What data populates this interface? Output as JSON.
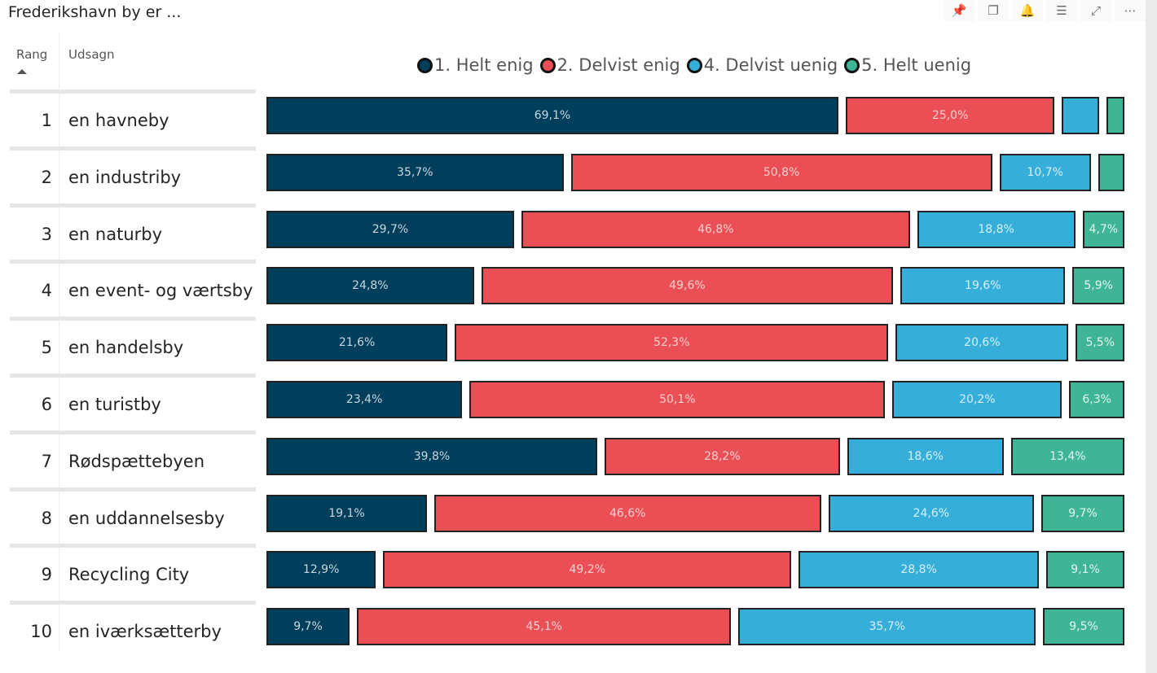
{
  "title": "Frederikshavn by er ...",
  "toolbar": [
    {
      "name": "pin-icon",
      "glyph": "📌"
    },
    {
      "name": "copy-icon",
      "glyph": "❐"
    },
    {
      "name": "bell-icon",
      "glyph": "🔔"
    },
    {
      "name": "filter-icon",
      "glyph": "☰"
    },
    {
      "name": "focus-mode-icon",
      "glyph": "⤢"
    },
    {
      "name": "more-options-icon",
      "glyph": "⋯"
    }
  ],
  "columns": {
    "rank": "Rang",
    "statement": "Udsagn"
  },
  "chart_data": {
    "type": "bar",
    "stacked": true,
    "orientation": "horizontal",
    "legend_position": "top",
    "series": [
      {
        "name": "1. Helt enig",
        "color": "#003f5c",
        "label_color": "#c8d6e0"
      },
      {
        "name": "2. Delvist enig",
        "color": "#e94f55",
        "label_color": "#fcd0d0"
      },
      {
        "name": "4. Delvist uenig",
        "color": "#35afd9",
        "label_color": "#d6f0fa"
      },
      {
        "name": "5. Helt uenig",
        "color": "#3fb596",
        "label_color": "#e2f6ef"
      }
    ],
    "rows": [
      {
        "rank": "1",
        "label": "en havneby",
        "values": [
          69.1,
          25.0,
          4.1,
          1.8
        ],
        "labels": [
          "69,1%",
          "25,0%",
          null,
          null
        ]
      },
      {
        "rank": "2",
        "label": "en industriby",
        "values": [
          35.7,
          50.8,
          10.7,
          2.8
        ],
        "labels": [
          "35,7%",
          "50,8%",
          "10,7%",
          null
        ]
      },
      {
        "rank": "3",
        "label": "en naturby",
        "values": [
          29.7,
          46.8,
          18.8,
          4.7
        ],
        "labels": [
          "29,7%",
          "46,8%",
          "18,8%",
          "4,7%"
        ]
      },
      {
        "rank": "4",
        "label": "en event- og værtsby",
        "values": [
          24.8,
          49.6,
          19.6,
          5.9
        ],
        "labels": [
          "24,8%",
          "49,6%",
          "19,6%",
          "5,9%"
        ]
      },
      {
        "rank": "5",
        "label": "en handelsby",
        "values": [
          21.6,
          52.3,
          20.6,
          5.5
        ],
        "labels": [
          "21,6%",
          "52,3%",
          "20,6%",
          "5,5%"
        ]
      },
      {
        "rank": "6",
        "label": "en turistby",
        "values": [
          23.4,
          50.1,
          20.2,
          6.3
        ],
        "labels": [
          "23,4%",
          "50,1%",
          "20,2%",
          "6,3%"
        ]
      },
      {
        "rank": "7",
        "label": "Rødspættebyen",
        "values": [
          39.8,
          28.2,
          18.6,
          13.4
        ],
        "labels": [
          "39,8%",
          "28,2%",
          "18,6%",
          "13,4%"
        ]
      },
      {
        "rank": "8",
        "label": "en uddannelsesby",
        "values": [
          19.1,
          46.6,
          24.6,
          9.7
        ],
        "labels": [
          "19,1%",
          "46,6%",
          "24,6%",
          "9,7%"
        ]
      },
      {
        "rank": "9",
        "label": "Recycling City",
        "values": [
          12.9,
          49.2,
          28.8,
          9.1
        ],
        "labels": [
          "12,9%",
          "49,2%",
          "28,8%",
          "9,1%"
        ]
      },
      {
        "rank": "10",
        "label": "en iværksætterby",
        "values": [
          9.7,
          45.1,
          35.7,
          9.5
        ],
        "labels": [
          "9,7%",
          "45,1%",
          "35,7%",
          "9,5%"
        ]
      }
    ]
  }
}
